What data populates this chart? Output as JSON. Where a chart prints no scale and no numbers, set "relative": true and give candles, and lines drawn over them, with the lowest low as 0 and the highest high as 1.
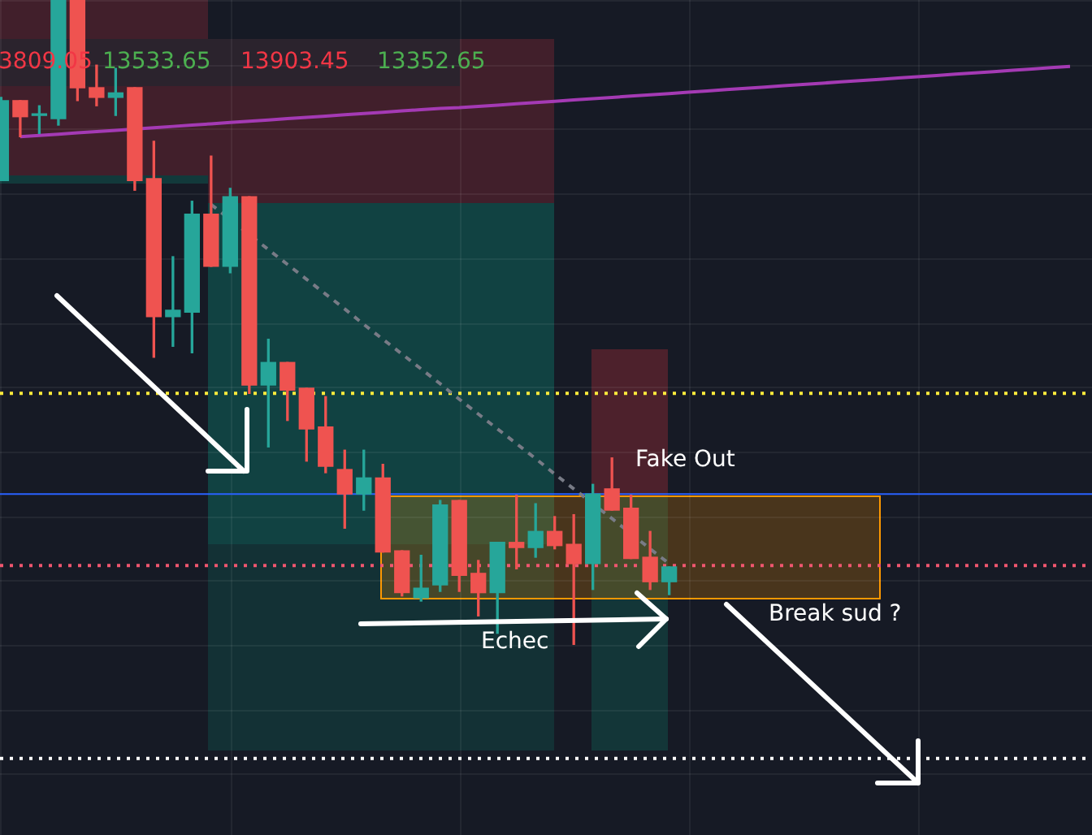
{
  "chart_data": {
    "type": "candlestick",
    "relative": true,
    "grid": true,
    "tick_labels": false,
    "categories": [
      null,
      null,
      null,
      null,
      null,
      null,
      null,
      null,
      null,
      null,
      null,
      null,
      null,
      null,
      null,
      null,
      null,
      null,
      null,
      null,
      null,
      null,
      null,
      null,
      null,
      null,
      null,
      null,
      null,
      null,
      null,
      null,
      null,
      null,
      null,
      null,
      null,
      null,
      null,
      null,
      null,
      null,
      null,
      null,
      null,
      null,
      null,
      null,
      null,
      null,
      null,
      null,
      null,
      null,
      null,
      null,
      null
    ],
    "ohlc": [
      [
        0.72,
        0.849,
        0.72,
        0.844
      ],
      [
        0.844,
        0.844,
        0.788,
        0.819
      ],
      [
        0.821,
        0.836,
        0.793,
        0.821
      ],
      [
        0.816,
        1,
        0.806,
        1
      ],
      [
        1,
        1,
        0.844,
        0.864
      ],
      [
        0.864,
        0.899,
        0.836,
        0.849
      ],
      [
        0.849,
        0.894,
        0.821,
        0.856
      ],
      [
        0.864,
        0.864,
        0.705,
        0.72
      ],
      [
        0.723,
        0.781,
        0.446,
        0.509
      ],
      [
        0.509,
        0.602,
        0.463,
        0.519
      ],
      [
        0.516,
        0.688,
        0.453,
        0.668
      ],
      [
        0.668,
        0.758,
        0.587,
        0.587
      ],
      [
        0.587,
        0.708,
        0.577,
        0.695
      ],
      [
        0.695,
        0.695,
        0.39,
        0.403
      ],
      [
        0.403,
        0.474,
        0.307,
        0.438
      ],
      [
        0.438,
        0.438,
        0.348,
        0.395
      ],
      [
        0.398,
        0.398,
        0.285,
        0.335
      ],
      [
        0.338,
        0.385,
        0.267,
        0.277
      ],
      [
        0.272,
        0.302,
        0.181,
        0.234
      ],
      [
        0.234,
        0.302,
        0.209,
        0.259
      ],
      [
        0.259,
        0.28,
        0.144,
        0.144
      ],
      [
        0.146,
        0.146,
        0.076,
        0.081
      ],
      [
        0.073,
        0.139,
        0.068,
        0.088
      ],
      [
        0.093,
        0.224,
        0.083,
        0.217
      ],
      [
        0.224,
        0.224,
        0.083,
        0.108
      ],
      [
        0.111,
        0.131,
        0.045,
        0.081
      ],
      [
        0.081,
        0.159,
        0.018,
        0.159
      ],
      [
        0.159,
        0.232,
        0.118,
        0.151
      ],
      [
        0.151,
        0.219,
        0.136,
        0.176
      ],
      [
        0.176,
        0.199,
        0.149,
        0.154
      ],
      [
        0.156,
        0.202,
        0,
        0.126
      ],
      [
        0.126,
        0.249,
        0.086,
        0.234
      ],
      [
        0.242,
        0.29,
        0.209,
        0.209
      ],
      [
        0.212,
        0.232,
        0.134,
        0.134
      ],
      [
        0.136,
        0.176,
        0.086,
        0.098
      ],
      [
        0.098,
        0.121,
        0.078,
        0.121
      ],
      null,
      null,
      null,
      null,
      null,
      null,
      null,
      null,
      null,
      null,
      null,
      null,
      null,
      null,
      null,
      null,
      null,
      null,
      null,
      null,
      null
    ],
    "series": [
      {
        "type": "line",
        "color": "#a43ab4",
        "values": [
          null,
          0.788,
          0.79,
          0.792,
          0.794,
          0.796,
          0.798,
          null,
          0.802,
          0.804,
          0.806,
          0.808,
          0.81,
          0.812,
          0.814,
          0.816,
          0.818,
          0.82,
          0.822,
          0.824,
          0.826,
          0.828,
          0.83,
          0.832,
          0.833,
          0.835,
          0.837,
          0.839,
          0.841,
          0.843,
          0.845,
          0.847,
          0.849,
          0.851,
          0.853,
          0.855,
          0.857,
          0.859,
          0.861,
          0.863,
          0.865,
          0.867,
          0.869,
          0.871,
          0.873,
          0.875,
          0.877,
          0.879,
          0.881,
          0.883,
          0.885,
          0.887,
          0.889,
          0.891,
          0.893,
          0.895,
          0.897
        ]
      },
      {
        "type": "line",
        "color": "#787b86",
        "line_style": "dashed",
        "values": [
          null,
          null,
          null,
          null,
          null,
          null,
          null,
          null,
          null,
          null,
          null,
          0.683,
          null,
          null,
          0.613,
          0.59,
          0.567,
          0.544,
          0.521,
          0.497,
          0.474,
          0.451,
          0.428,
          0.405,
          0.381,
          0.358,
          0.335,
          0.312,
          0.289,
          0.265,
          0.242,
          null,
          0.196,
          null,
          0.149,
          0.126,
          null,
          null,
          null,
          null,
          null,
          null,
          null,
          null,
          null,
          null,
          null,
          null,
          null,
          null,
          null,
          null,
          null,
          null,
          null,
          null,
          null
        ]
      }
    ],
    "ref_lines": [
      {
        "axis": "y",
        "value": 0.39,
        "color": "#ffeb3b",
        "line_style": "dotted"
      },
      {
        "axis": "y",
        "value": 0.234,
        "color": "#2962ff",
        "line_style": "solid"
      },
      {
        "axis": "y",
        "value": 0.123,
        "color": "#f0566f",
        "line_style": "dotted"
      },
      {
        "axis": "y",
        "value": -0.176,
        "color": "#ffffff",
        "line_style": "dotted"
      }
    ],
    "annotations": [
      "3809.05",
      "13533.65",
      "13903.45",
      "13352.65",
      "Fake Out",
      "Echec",
      "Break sud ?"
    ]
  }
}
